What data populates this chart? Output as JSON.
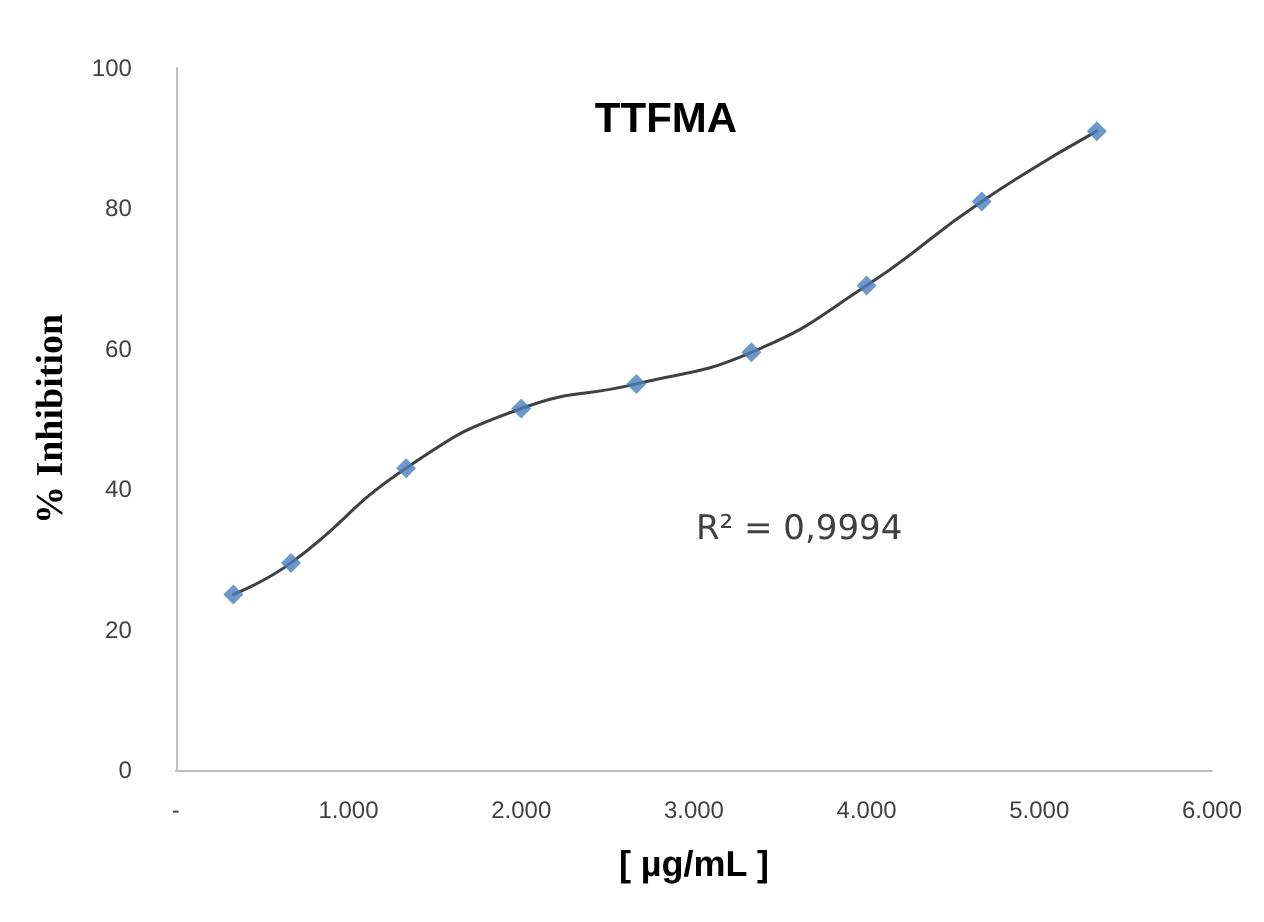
{
  "chart_data": {
    "type": "scatter",
    "title": "TTFMA",
    "xlabel": "[ µg/mL ]",
    "ylabel": "% Inhibition",
    "annotations": [
      "R² = 0,9994"
    ],
    "series": [
      {
        "color": "#4a7ebb",
        "x": [
          333,
          667,
          1333,
          2000,
          2667,
          3333,
          4000,
          4667,
          5333
        ],
        "values": [
          25,
          29.5,
          43,
          51.5,
          55,
          59.5,
          69,
          81,
          91
        ],
        "marker": "diamond"
      },
      {
        "type": "line",
        "color": "#404040",
        "x": [
          333,
          667,
          1333,
          2000,
          2667,
          3333,
          4000,
          4667,
          5333
        ],
        "values": [
          25,
          29.5,
          43,
          51.5,
          55,
          59.5,
          69,
          81,
          91
        ],
        "marker": "none",
        "line_style": "solid"
      }
    ],
    "xlim": [
      0,
      6000
    ],
    "xticks": [
      {
        "value": 0,
        "label": "-"
      },
      {
        "value": 1000,
        "label": "1.000"
      },
      {
        "value": 2000,
        "label": "2.000"
      },
      {
        "value": 3000,
        "label": "3.000"
      },
      {
        "value": 4000,
        "label": "4.000"
      },
      {
        "value": 5000,
        "label": "5.000"
      },
      {
        "value": 6000,
        "label": "6.000"
      }
    ],
    "ylim": [
      0,
      100
    ],
    "yticks": [
      0,
      20,
      40,
      60,
      80,
      100
    ],
    "grid": false
  }
}
